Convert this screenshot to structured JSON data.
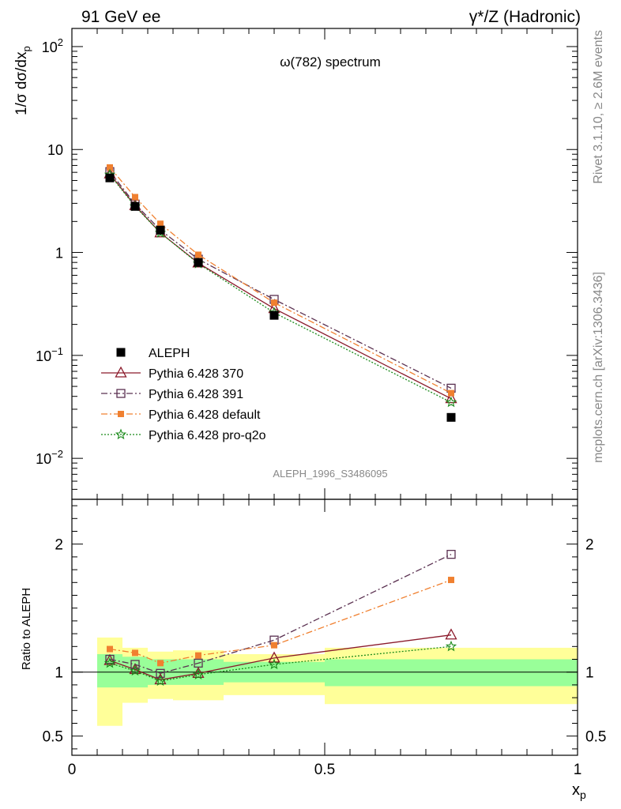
{
  "header": {
    "left": "91 GeV ee",
    "right": "γ*/Z (Hadronic)"
  },
  "side": {
    "rivet": "Rivet 3.1.10, ≥ 2.6M events",
    "mcplots": "mcplots.cern.ch [arXiv:1306.3436]"
  },
  "chart_data": [
    {
      "type": "line",
      "title": "ω(782) spectrum",
      "ylabel": "1/σ dσ/dx_p",
      "yscale": "log",
      "ylim": [
        0.004,
        150
      ],
      "xlim": [
        0,
        1
      ],
      "watermark": "ALEPH_1996_S3486095",
      "yticks": [
        {
          "v": 100,
          "base": "10",
          "exp": "2"
        },
        {
          "v": 10,
          "base": "10",
          "exp": ""
        },
        {
          "v": 1,
          "base": "1",
          "exp": ""
        },
        {
          "v": 0.1,
          "base": "10",
          "exp": "−1"
        },
        {
          "v": 0.01,
          "base": "10",
          "exp": "−2"
        }
      ],
      "legend_position": "bottom-left",
      "x": [
        0.075,
        0.125,
        0.175,
        0.25,
        0.4,
        0.75
      ],
      "series": [
        {
          "name": "ALEPH",
          "color": "#000000",
          "marker": "square-filled",
          "line": "none",
          "values": [
            5.3,
            2.8,
            1.65,
            0.8,
            0.245,
            0.025
          ]
        },
        {
          "name": "Pythia 6.428 370",
          "color": "#8b1a2b",
          "marker": "triangle-open",
          "line": "solid",
          "values": [
            5.8,
            2.85,
            1.55,
            0.79,
            0.285,
            0.038
          ]
        },
        {
          "name": "Pythia 6.428 391",
          "color": "#5a3050",
          "marker": "square-open",
          "line": "dashdot",
          "values": [
            6.1,
            2.95,
            1.65,
            0.86,
            0.35,
            0.048
          ]
        },
        {
          "name": "Pythia 6.428 default",
          "color": "#f08030",
          "marker": "square-filled-small",
          "line": "dashdot",
          "values": [
            6.7,
            3.45,
            1.9,
            0.95,
            0.325,
            0.043
          ]
        },
        {
          "name": "Pythia 6.428 pro-q2o",
          "color": "#1a8a1a",
          "marker": "star",
          "line": "dotted",
          "values": [
            5.7,
            2.8,
            1.55,
            0.78,
            0.26,
            0.035
          ]
        }
      ]
    },
    {
      "type": "line",
      "ylabel": "Ratio to ALEPH",
      "xlabel": "x_p",
      "xlim": [
        0,
        1
      ],
      "ylim": [
        0.35,
        2.35
      ],
      "yticks": [
        "0.5",
        "1",
        "2"
      ],
      "xticks": [
        "0",
        "0.5",
        "1"
      ],
      "bands": {
        "edges": [
          0.05,
          0.1,
          0.15,
          0.2,
          0.3,
          0.5,
          1.0
        ],
        "stat_lo": [
          0.88,
          0.88,
          0.9,
          0.9,
          0.92,
          0.89
        ],
        "stat_hi": [
          1.14,
          1.12,
          1.1,
          1.1,
          1.08,
          1.1
        ],
        "total_lo": [
          0.58,
          0.76,
          0.79,
          0.78,
          0.82,
          0.75
        ],
        "total_hi": [
          1.27,
          1.19,
          1.16,
          1.17,
          1.14,
          1.19
        ]
      },
      "x": [
        0.075,
        0.125,
        0.175,
        0.25,
        0.4,
        0.75
      ],
      "series": [
        {
          "name": "Pythia 6.428 370",
          "values": [
            1.09,
            1.02,
            0.94,
            0.99,
            1.11,
            1.29
          ]
        },
        {
          "name": "Pythia 6.428 391",
          "values": [
            1.1,
            1.06,
            0.99,
            1.07,
            1.25,
            1.92
          ]
        },
        {
          "name": "Pythia 6.428 default",
          "values": [
            1.18,
            1.15,
            1.07,
            1.13,
            1.21,
            1.72
          ]
        },
        {
          "name": "Pythia 6.428 pro-q2o",
          "values": [
            1.07,
            1.01,
            0.93,
            0.98,
            1.06,
            1.2
          ]
        }
      ]
    }
  ]
}
